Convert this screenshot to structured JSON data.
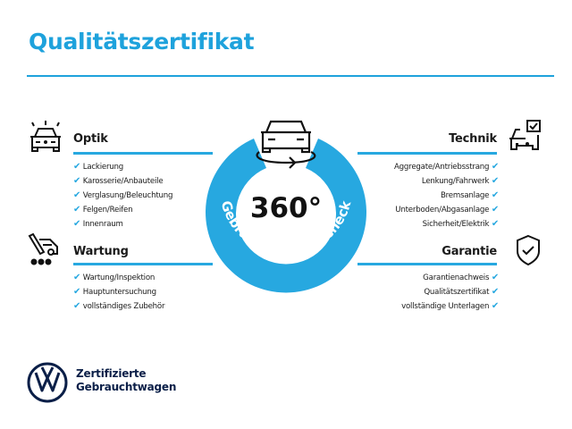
{
  "title": "Qualitätszertifikat",
  "center": {
    "big": "360°",
    "ring_text": "Gebrauchtwagen-Check"
  },
  "sections": {
    "optik": {
      "heading": "Optik",
      "icon": "car-lights-icon",
      "items": [
        "Lackierung",
        "Karosserie/Anbauteile",
        "Verglasung/Beleuchtung",
        "Felgen/Reifen",
        "Innenraum"
      ]
    },
    "wartung": {
      "heading": "Wartung",
      "icon": "service-tools-icon",
      "items": [
        "Wartung/Inspektion",
        "Hauptuntersuchung",
        "vollständiges Zubehör"
      ]
    },
    "technik": {
      "heading": "Technik",
      "icon": "car-checklist-icon",
      "items": [
        "Aggregate/Antriebsstrang",
        "Lenkung/Fahrwerk",
        "Bremsanlage",
        "Unterboden/Abgasanlage",
        "Sicherheit/Elektrik"
      ]
    },
    "garantie": {
      "heading": "Garantie",
      "icon": "shield-check-icon",
      "items": [
        "Garantienachweis",
        "Qualitätszertifikat",
        "vollständige Unterlagen"
      ]
    }
  },
  "brand": {
    "line1": "Zertifizierte",
    "line2": "Gebrauchtwagen"
  },
  "colors": {
    "accent": "#27a8e0",
    "title": "#1ea2dc",
    "brand": "#0b1f48"
  }
}
